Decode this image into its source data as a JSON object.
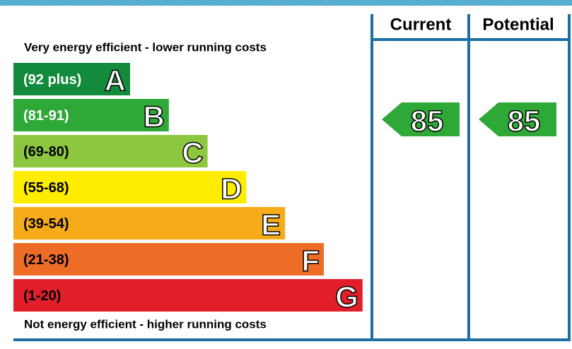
{
  "header": {
    "current": "Current",
    "potential": "Potential"
  },
  "top_note": "Very energy efficient - lower running costs",
  "bottom_note": "Not energy efficient - higher running costs",
  "bands": [
    {
      "range": "(92 plus)",
      "letter": "A",
      "color": "#138a3c"
    },
    {
      "range": "(81-91)",
      "letter": "B",
      "color": "#2ea836"
    },
    {
      "range": "(69-80)",
      "letter": "C",
      "color": "#8dc63f"
    },
    {
      "range": "(55-68)",
      "letter": "D",
      "color": "#ffed00"
    },
    {
      "range": "(39-54)",
      "letter": "E",
      "color": "#f6ac1a"
    },
    {
      "range": "(21-38)",
      "letter": "F",
      "color": "#ee6d26"
    },
    {
      "range": "(1-20)",
      "letter": "G",
      "color": "#e31e2b"
    }
  ],
  "current": {
    "value": 85,
    "color": "#2ea836"
  },
  "potential": {
    "value": 85,
    "color": "#2ea836"
  }
}
